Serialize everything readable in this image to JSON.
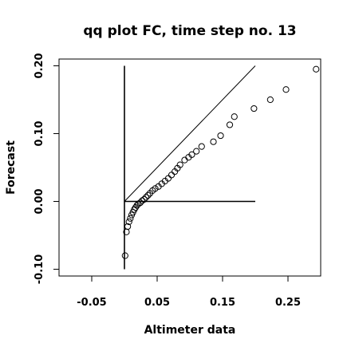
{
  "chart_data": {
    "type": "scatter",
    "title": "qq plot FC, time step no. 13",
    "xlabel": "Altimeter data",
    "ylabel": "Forecast",
    "xlim": [
      -0.1,
      0.3
    ],
    "ylim": [
      -0.11,
      0.21
    ],
    "x_ticks": [
      {
        "value": -0.05,
        "label": "-0.05"
      },
      {
        "value": 0.05,
        "label": "0.05"
      },
      {
        "value": 0.15,
        "label": "0.15"
      },
      {
        "value": 0.25,
        "label": "0.25"
      }
    ],
    "y_ticks": [
      {
        "value": -0.1,
        "label": "-0.10"
      },
      {
        "value": 0.0,
        "label": "0.00"
      },
      {
        "value": 0.1,
        "label": "0.10"
      },
      {
        "value": 0.2,
        "label": "0.20"
      }
    ],
    "grid": false,
    "reference_lines": [
      {
        "x1": 0.0,
        "y1": 0.0,
        "x2": 0.2,
        "y2": 0.2
      },
      {
        "x1": 0.0,
        "y1": -0.1,
        "x2": 0.0,
        "y2": 0.2
      },
      {
        "x1": 0.0,
        "y1": 0.0,
        "x2": 0.2,
        "y2": 0.0
      }
    ],
    "points": [
      {
        "x": 0.001,
        "y": -0.08
      },
      {
        "x": 0.003,
        "y": -0.045
      },
      {
        "x": 0.005,
        "y": -0.037
      },
      {
        "x": 0.007,
        "y": -0.03
      },
      {
        "x": 0.009,
        "y": -0.025
      },
      {
        "x": 0.011,
        "y": -0.02
      },
      {
        "x": 0.013,
        "y": -0.016
      },
      {
        "x": 0.015,
        "y": -0.012
      },
      {
        "x": 0.017,
        "y": -0.009
      },
      {
        "x": 0.019,
        "y": -0.006
      },
      {
        "x": 0.021,
        "y": -0.004
      },
      {
        "x": 0.024,
        "y": -0.002
      },
      {
        "x": 0.027,
        "y": 0.001
      },
      {
        "x": 0.03,
        "y": 0.003
      },
      {
        "x": 0.033,
        "y": 0.006
      },
      {
        "x": 0.036,
        "y": 0.009
      },
      {
        "x": 0.039,
        "y": 0.012
      },
      {
        "x": 0.043,
        "y": 0.016
      },
      {
        "x": 0.047,
        "y": 0.019
      },
      {
        "x": 0.052,
        "y": 0.022
      },
      {
        "x": 0.057,
        "y": 0.026
      },
      {
        "x": 0.062,
        "y": 0.03
      },
      {
        "x": 0.067,
        "y": 0.034
      },
      {
        "x": 0.072,
        "y": 0.039
      },
      {
        "x": 0.077,
        "y": 0.044
      },
      {
        "x": 0.081,
        "y": 0.049
      },
      {
        "x": 0.085,
        "y": 0.054
      },
      {
        "x": 0.092,
        "y": 0.061
      },
      {
        "x": 0.098,
        "y": 0.065
      },
      {
        "x": 0.103,
        "y": 0.069
      },
      {
        "x": 0.11,
        "y": 0.074
      },
      {
        "x": 0.118,
        "y": 0.081
      },
      {
        "x": 0.136,
        "y": 0.088
      },
      {
        "x": 0.147,
        "y": 0.097
      },
      {
        "x": 0.161,
        "y": 0.113
      },
      {
        "x": 0.168,
        "y": 0.125
      },
      {
        "x": 0.198,
        "y": 0.137
      },
      {
        "x": 0.223,
        "y": 0.15
      },
      {
        "x": 0.247,
        "y": 0.165
      },
      {
        "x": 0.293,
        "y": 0.195
      }
    ]
  }
}
